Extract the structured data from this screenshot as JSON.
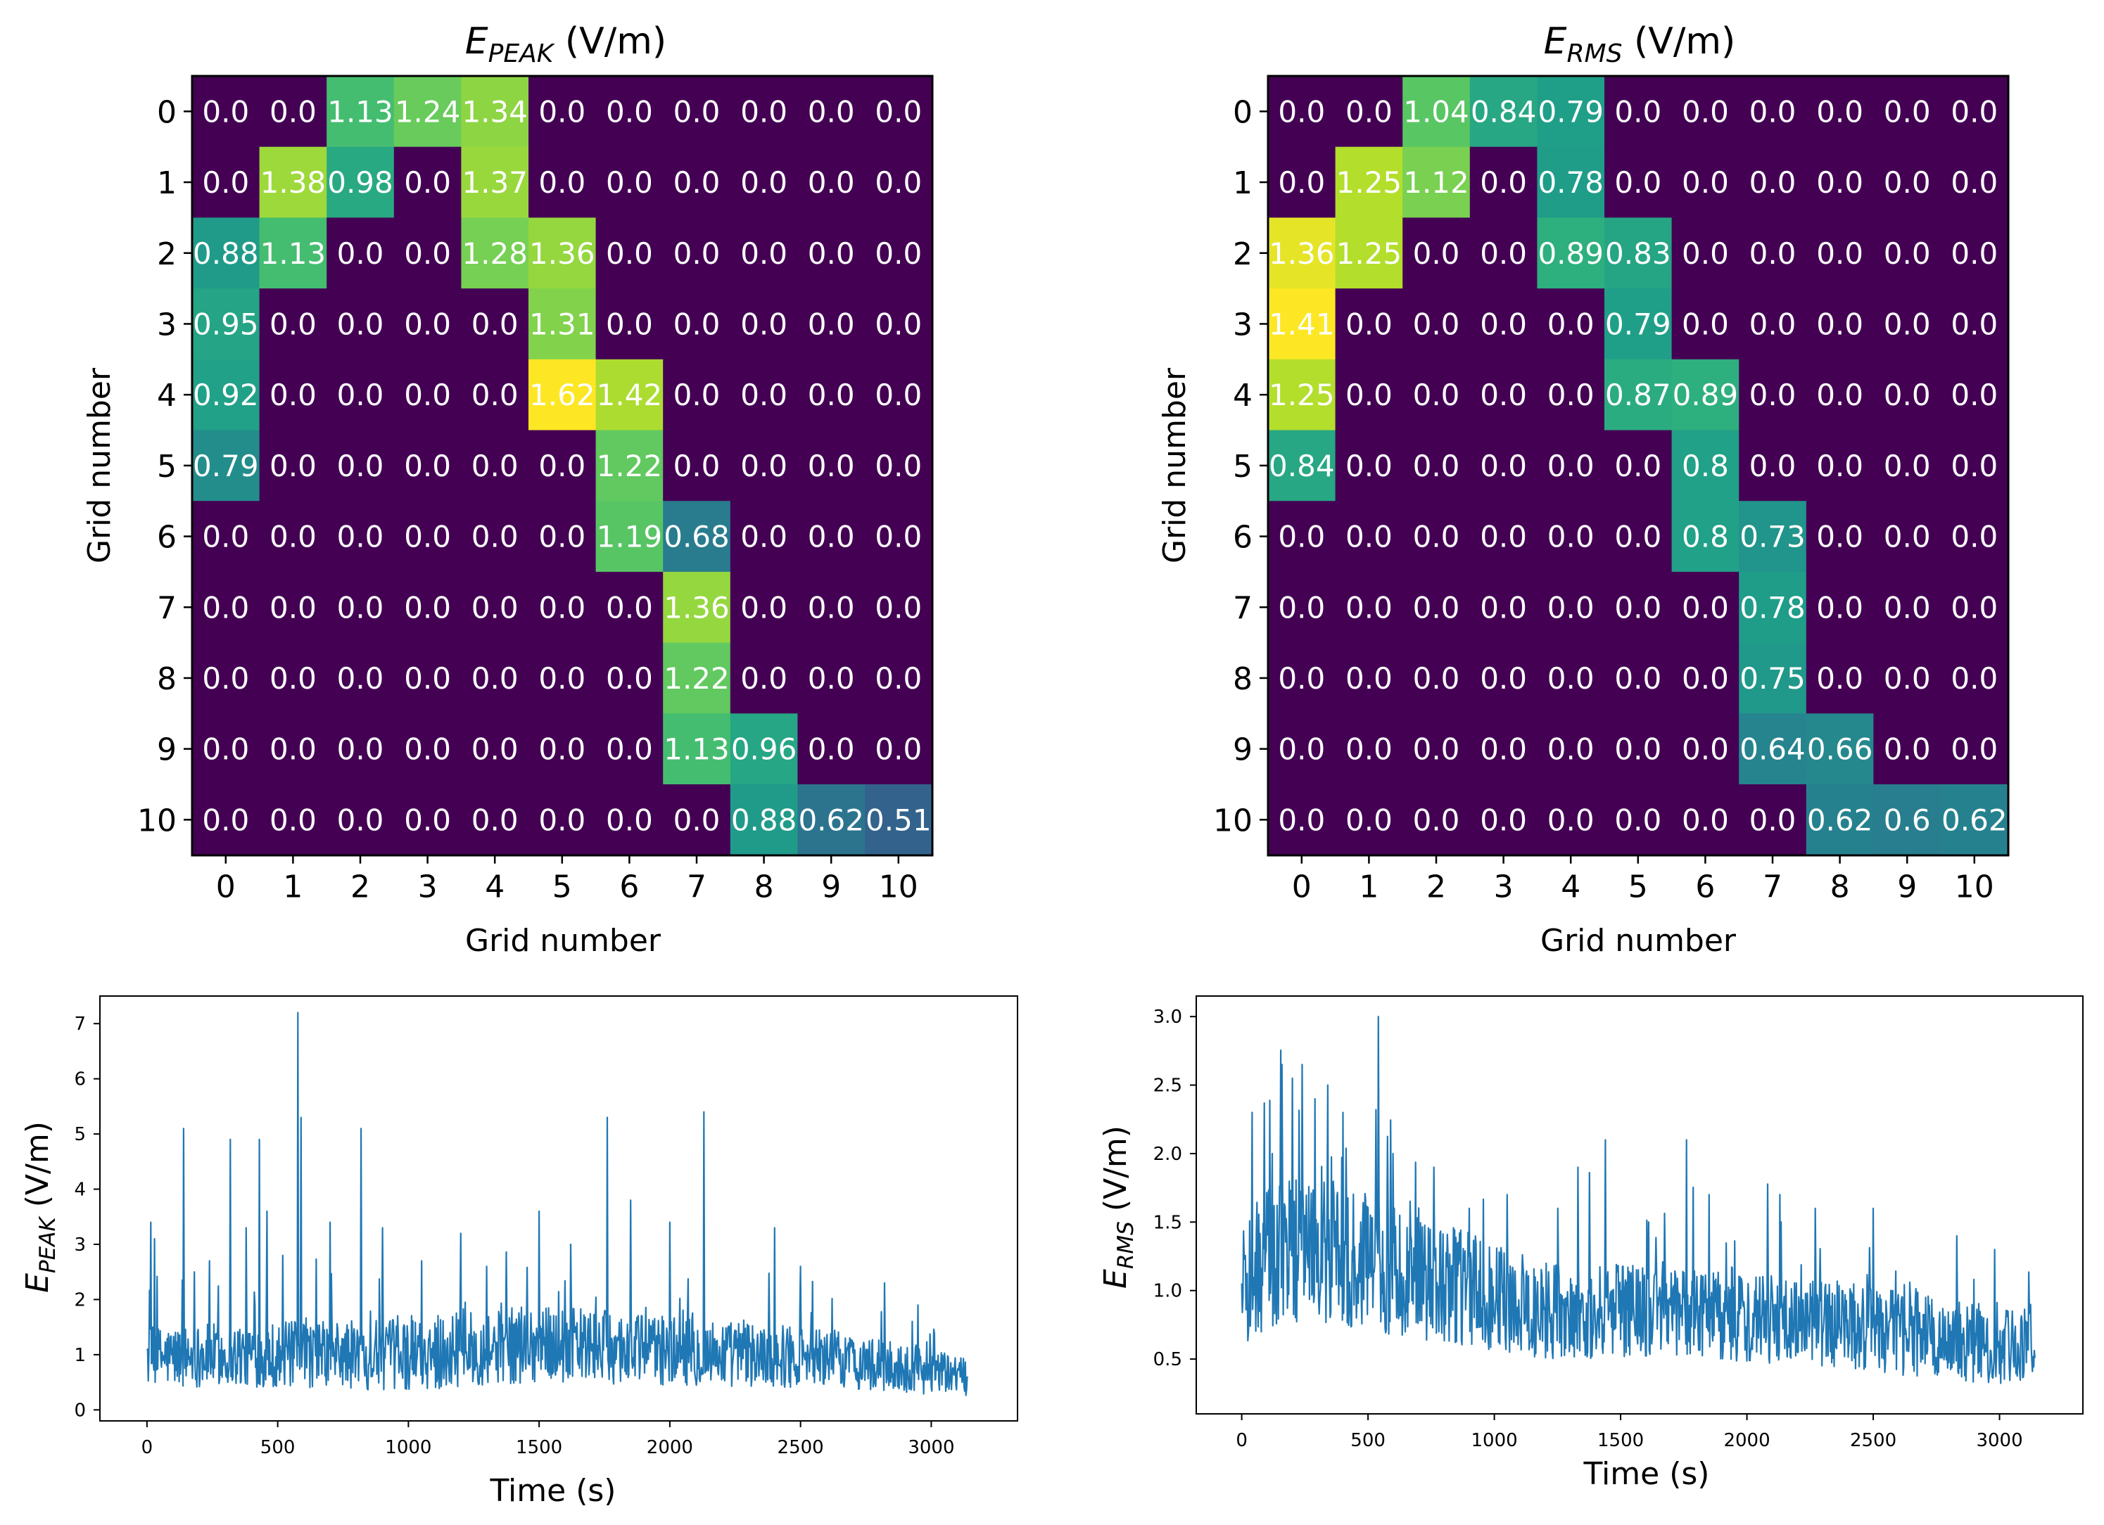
{
  "chart_data": [
    {
      "type": "heatmap",
      "title_main": "E",
      "title_sub": "PEAK",
      "title_unit": " (V/m)",
      "xlabel": "Grid number",
      "ylabel": "Grid number",
      "xticks": [
        "0",
        "1",
        "2",
        "3",
        "4",
        "5",
        "6",
        "7",
        "8",
        "9",
        "10"
      ],
      "yticks": [
        "0",
        "1",
        "2",
        "3",
        "4",
        "5",
        "6",
        "7",
        "8",
        "9",
        "10"
      ],
      "vmax": 1.62,
      "cells": [
        [
          "0.0",
          "0.0",
          "1.13",
          "1.24",
          "1.34",
          "0.0",
          "0.0",
          "0.0",
          "0.0",
          "0.0",
          "0.0"
        ],
        [
          "0.0",
          "1.38",
          "0.98",
          "0.0",
          "1.37",
          "0.0",
          "0.0",
          "0.0",
          "0.0",
          "0.0",
          "0.0"
        ],
        [
          "0.88",
          "1.13",
          "0.0",
          "0.0",
          "1.28",
          "1.36",
          "0.0",
          "0.0",
          "0.0",
          "0.0",
          "0.0"
        ],
        [
          "0.95",
          "0.0",
          "0.0",
          "0.0",
          "0.0",
          "1.31",
          "0.0",
          "0.0",
          "0.0",
          "0.0",
          "0.0"
        ],
        [
          "0.92",
          "0.0",
          "0.0",
          "0.0",
          "0.0",
          "1.62",
          "1.42",
          "0.0",
          "0.0",
          "0.0",
          "0.0"
        ],
        [
          "0.79",
          "0.0",
          "0.0",
          "0.0",
          "0.0",
          "0.0",
          "1.22",
          "0.0",
          "0.0",
          "0.0",
          "0.0"
        ],
        [
          "0.0",
          "0.0",
          "0.0",
          "0.0",
          "0.0",
          "0.0",
          "1.19",
          "0.68",
          "0.0",
          "0.0",
          "0.0"
        ],
        [
          "0.0",
          "0.0",
          "0.0",
          "0.0",
          "0.0",
          "0.0",
          "0.0",
          "1.36",
          "0.0",
          "0.0",
          "0.0"
        ],
        [
          "0.0",
          "0.0",
          "0.0",
          "0.0",
          "0.0",
          "0.0",
          "0.0",
          "1.22",
          "0.0",
          "0.0",
          "0.0"
        ],
        [
          "0.0",
          "0.0",
          "0.0",
          "0.0",
          "0.0",
          "0.0",
          "0.0",
          "1.13",
          "0.96",
          "0.0",
          "0.0"
        ],
        [
          "0.0",
          "0.0",
          "0.0",
          "0.0",
          "0.0",
          "0.0",
          "0.0",
          "0.0",
          "0.88",
          "0.62",
          "0.51"
        ]
      ]
    },
    {
      "type": "heatmap",
      "title_main": "E",
      "title_sub": "RMS",
      "title_unit": " (V/m)",
      "xlabel": "Grid number",
      "ylabel": "Grid number",
      "xticks": [
        "0",
        "1",
        "2",
        "3",
        "4",
        "5",
        "6",
        "7",
        "8",
        "9",
        "10"
      ],
      "yticks": [
        "0",
        "1",
        "2",
        "3",
        "4",
        "5",
        "6",
        "7",
        "8",
        "9",
        "10"
      ],
      "vmax": 1.41,
      "cells": [
        [
          "0.0",
          "0.0",
          "1.04",
          "0.84",
          "0.79",
          "0.0",
          "0.0",
          "0.0",
          "0.0",
          "0.0",
          "0.0"
        ],
        [
          "0.0",
          "1.25",
          "1.12",
          "0.0",
          "0.78",
          "0.0",
          "0.0",
          "0.0",
          "0.0",
          "0.0",
          "0.0"
        ],
        [
          "1.36",
          "1.25",
          "0.0",
          "0.0",
          "0.89",
          "0.83",
          "0.0",
          "0.0",
          "0.0",
          "0.0",
          "0.0"
        ],
        [
          "1.41",
          "0.0",
          "0.0",
          "0.0",
          "0.0",
          "0.79",
          "0.0",
          "0.0",
          "0.0",
          "0.0",
          "0.0"
        ],
        [
          "1.25",
          "0.0",
          "0.0",
          "0.0",
          "0.0",
          "0.87",
          "0.89",
          "0.0",
          "0.0",
          "0.0",
          "0.0"
        ],
        [
          "0.84",
          "0.0",
          "0.0",
          "0.0",
          "0.0",
          "0.0",
          "0.8",
          "0.0",
          "0.0",
          "0.0",
          "0.0"
        ],
        [
          "0.0",
          "0.0",
          "0.0",
          "0.0",
          "0.0",
          "0.0",
          "0.8",
          "0.73",
          "0.0",
          "0.0",
          "0.0"
        ],
        [
          "0.0",
          "0.0",
          "0.0",
          "0.0",
          "0.0",
          "0.0",
          "0.0",
          "0.78",
          "0.0",
          "0.0",
          "0.0"
        ],
        [
          "0.0",
          "0.0",
          "0.0",
          "0.0",
          "0.0",
          "0.0",
          "0.0",
          "0.75",
          "0.0",
          "0.0",
          "0.0"
        ],
        [
          "0.0",
          "0.0",
          "0.0",
          "0.0",
          "0.0",
          "0.0",
          "0.0",
          "0.64",
          "0.66",
          "0.0",
          "0.0"
        ],
        [
          "0.0",
          "0.0",
          "0.0",
          "0.0",
          "0.0",
          "0.0",
          "0.0",
          "0.0",
          "0.62",
          "0.6",
          "0.62"
        ]
      ]
    },
    {
      "type": "line",
      "xlabel": "Time (s)",
      "ylabel_main": "E",
      "ylabel_sub": "PEAK",
      "ylabel_unit": " (V/m)",
      "xlim": [
        -180,
        3330
      ],
      "ylim": [
        -0.2,
        7.5
      ],
      "xticks": [
        0,
        500,
        1000,
        1500,
        2000,
        2500,
        3000
      ],
      "yticks": [
        0,
        1,
        2,
        3,
        4,
        5,
        6,
        7
      ],
      "color": "#1f77b4",
      "x_range": [
        0,
        3140
      ],
      "baseline": [
        [
          0,
          0.95
        ],
        [
          300,
          1.0
        ],
        [
          700,
          1.0
        ],
        [
          1000,
          1.0
        ],
        [
          1500,
          1.2
        ],
        [
          1900,
          1.1
        ],
        [
          2300,
          1.0
        ],
        [
          2600,
          0.95
        ],
        [
          2800,
          0.8
        ],
        [
          3140,
          0.6
        ]
      ],
      "noise_amp": [
        [
          0,
          0.55
        ],
        [
          1500,
          0.7
        ],
        [
          2600,
          0.55
        ],
        [
          3140,
          0.35
        ]
      ],
      "ymin_clip": 0.1,
      "spikes": [
        [
          15,
          3.4
        ],
        [
          30,
          3.1
        ],
        [
          140,
          5.1
        ],
        [
          180,
          2.5
        ],
        [
          240,
          2.7
        ],
        [
          320,
          4.9
        ],
        [
          380,
          3.3
        ],
        [
          430,
          4.9
        ],
        [
          460,
          3.6
        ],
        [
          520,
          2.8
        ],
        [
          577,
          7.2
        ],
        [
          590,
          5.3
        ],
        [
          700,
          3.4
        ],
        [
          820,
          5.1
        ],
        [
          900,
          3.3
        ],
        [
          1050,
          2.7
        ],
        [
          1200,
          3.2
        ],
        [
          1300,
          2.6
        ],
        [
          1500,
          3.6
        ],
        [
          1620,
          3.0
        ],
        [
          1760,
          5.3
        ],
        [
          1850,
          3.8
        ],
        [
          2000,
          3.4
        ],
        [
          2130,
          5.4
        ],
        [
          2400,
          3.3
        ],
        [
          2500,
          2.6
        ],
        [
          2820,
          2.3
        ],
        [
          2950,
          1.9
        ]
      ]
    },
    {
      "type": "line",
      "xlabel": "Time (s)",
      "ylabel_main": "E",
      "ylabel_sub": "RMS",
      "ylabel_unit": " (V/m)",
      "xlim": [
        -180,
        3330
      ],
      "ylim": [
        0.1,
        3.15
      ],
      "xticks": [
        0,
        500,
        1000,
        1500,
        2000,
        2500,
        3000
      ],
      "yticks": [
        0.5,
        1.0,
        1.5,
        2.0,
        2.5,
        3.0
      ],
      "color": "#1f77b4",
      "x_range": [
        0,
        3140
      ],
      "baseline": [
        [
          0,
          1.0
        ],
        [
          100,
          1.25
        ],
        [
          300,
          1.3
        ],
        [
          600,
          1.15
        ],
        [
          900,
          1.0
        ],
        [
          1200,
          0.85
        ],
        [
          1600,
          0.85
        ],
        [
          2000,
          0.8
        ],
        [
          2400,
          0.75
        ],
        [
          2800,
          0.65
        ],
        [
          3140,
          0.6
        ]
      ],
      "noise_amp": [
        [
          0,
          0.55
        ],
        [
          600,
          0.5
        ],
        [
          1200,
          0.35
        ],
        [
          3140,
          0.3
        ]
      ],
      "ymin_clip": 0.15,
      "spikes": [
        [
          40,
          2.3
        ],
        [
          120,
          2.0
        ],
        [
          160,
          2.65
        ],
        [
          200,
          2.55
        ],
        [
          240,
          2.65
        ],
        [
          290,
          2.4
        ],
        [
          340,
          2.5
        ],
        [
          400,
          2.3
        ],
        [
          540,
          3.0
        ],
        [
          600,
          2.0
        ],
        [
          760,
          1.9
        ],
        [
          900,
          1.6
        ],
        [
          1050,
          1.7
        ],
        [
          1250,
          1.6
        ],
        [
          1330,
          1.9
        ],
        [
          1440,
          2.1
        ],
        [
          1610,
          1.5
        ],
        [
          1760,
          2.1
        ],
        [
          1850,
          1.7
        ],
        [
          2130,
          1.7
        ],
        [
          2270,
          1.6
        ],
        [
          2500,
          1.6
        ],
        [
          2830,
          1.4
        ],
        [
          2980,
          1.3
        ]
      ]
    }
  ]
}
